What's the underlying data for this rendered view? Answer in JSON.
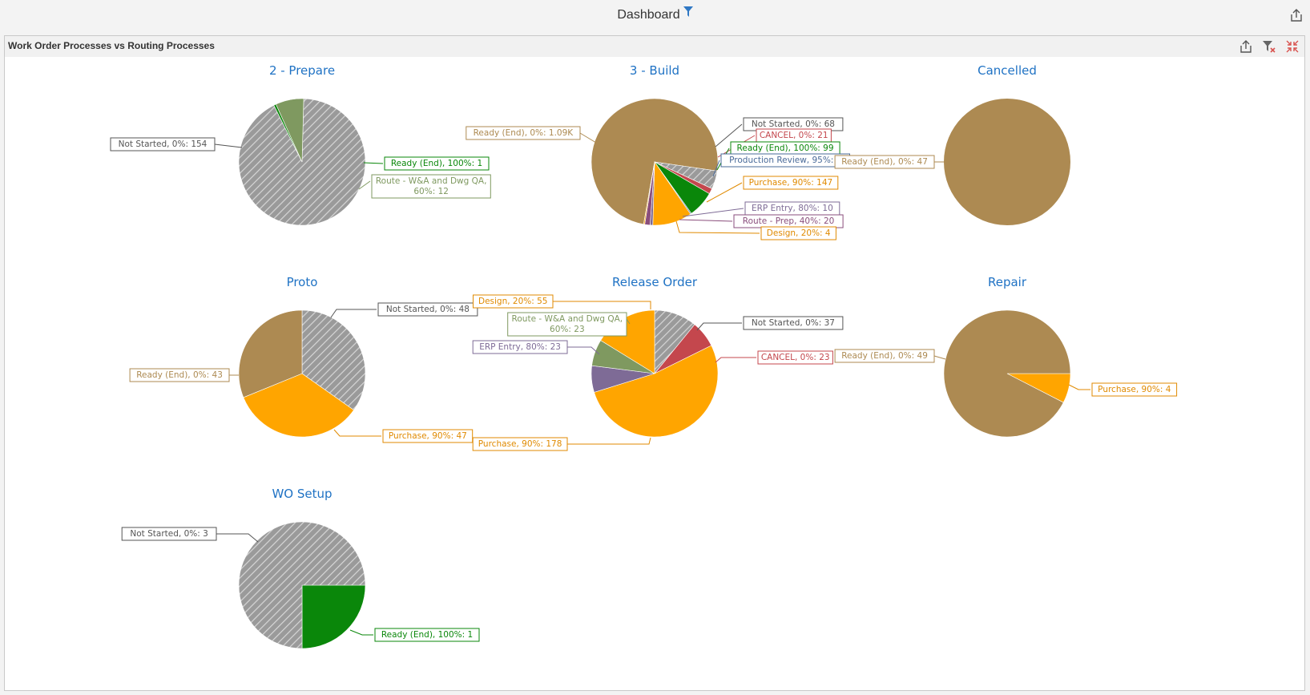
{
  "header": {
    "title": "Dashboard",
    "icons": {
      "filter": "filter-icon",
      "export": "export-icon"
    }
  },
  "panel": {
    "title": "Work Order Processes vs Routing Processes",
    "tools": [
      "export-icon",
      "clear-filter-icon",
      "collapse-icon"
    ]
  },
  "colors": {
    "not_started": "#8c8c8c",
    "ready_end_brown": "#ad8a52",
    "ready_end_green": "#0a870a",
    "route_wa": "#7f9960",
    "cancel": "#c4474d",
    "production_review": "#4a6b99",
    "purchase": "#ffa500",
    "erp_entry": "#7e6b96",
    "route_prep": "#8a4e7c",
    "design": "#ffa500",
    "title_blue": "#1f72c4"
  },
  "chart_data": [
    {
      "type": "pie",
      "title": "2 - Prepare",
      "slices": [
        {
          "label": "Not Started, 0%: 154",
          "value": 154,
          "color": "#8c8c8c",
          "hatch": true
        },
        {
          "label": "Ready (End), 100%: 1",
          "value": 1,
          "color": "#0a870a"
        },
        {
          "label": "Route - W&A and Dwg QA, 60%: 12",
          "value": 12,
          "color": "#7f9960"
        }
      ]
    },
    {
      "type": "pie",
      "title": "3 - Build",
      "slices": [
        {
          "label": "Ready (End), 0%: 1.09K",
          "value": 1090,
          "color": "#ad8a52"
        },
        {
          "label": "Not Started, 0%: 68",
          "value": 68,
          "color": "#8c8c8c",
          "hatch": true
        },
        {
          "label": "CANCEL, 0%: 21",
          "value": 21,
          "color": "#c4474d"
        },
        {
          "label": "Ready (End), 100%: 99",
          "value": 99,
          "color": "#0a870a"
        },
        {
          "label": "Production Review, 95%: 4",
          "value": 4,
          "color": "#4a6b99"
        },
        {
          "label": "Purchase, 90%: 147",
          "value": 147,
          "color": "#ffa500"
        },
        {
          "label": "ERP Entry, 80%: 10",
          "value": 10,
          "color": "#7e6b96"
        },
        {
          "label": "Route - Prep, 40%: 20",
          "value": 20,
          "color": "#8a4e7c"
        },
        {
          "label": "Design, 20%: 4",
          "value": 4,
          "color": "#ffa500"
        }
      ]
    },
    {
      "type": "pie",
      "title": "Cancelled",
      "slices": [
        {
          "label": "Ready (End), 0%: 47",
          "value": 47,
          "color": "#ad8a52"
        }
      ]
    },
    {
      "type": "pie",
      "title": "Proto",
      "slices": [
        {
          "label": "Not Started, 0%: 48",
          "value": 48,
          "color": "#8c8c8c",
          "hatch": true
        },
        {
          "label": "Purchase, 90%: 47",
          "value": 47,
          "color": "#ffa500"
        },
        {
          "label": "Ready (End), 0%: 43",
          "value": 43,
          "color": "#ad8a52"
        }
      ]
    },
    {
      "type": "pie",
      "title": "Release Order",
      "slices": [
        {
          "label": "Not Started, 0%: 37",
          "value": 37,
          "color": "#8c8c8c",
          "hatch": true
        },
        {
          "label": "CANCEL, 0%: 23",
          "value": 23,
          "color": "#c4474d"
        },
        {
          "label": "Purchase, 90%: 178",
          "value": 178,
          "color": "#ffa500"
        },
        {
          "label": "ERP Entry, 80%: 23",
          "value": 23,
          "color": "#7e6b96"
        },
        {
          "label": "Route - W&A and Dwg QA, 60%: 23",
          "value": 23,
          "color": "#7f9960"
        },
        {
          "label": "Design, 20%: 55",
          "value": 55,
          "color": "#ffa500"
        }
      ]
    },
    {
      "type": "pie",
      "title": "Repair",
      "slices": [
        {
          "label": "Purchase, 90%: 4",
          "value": 4,
          "color": "#ffa500"
        },
        {
          "label": "Ready (End), 0%: 49",
          "value": 49,
          "color": "#ad8a52"
        }
      ]
    },
    {
      "type": "pie",
      "title": "WO Setup",
      "slices": [
        {
          "label": "Ready (End), 100%: 1",
          "value": 1,
          "color": "#0a870a"
        },
        {
          "label": "Not Started, 0%: 3",
          "value": 3,
          "color": "#8c8c8c",
          "hatch": true
        }
      ]
    }
  ]
}
